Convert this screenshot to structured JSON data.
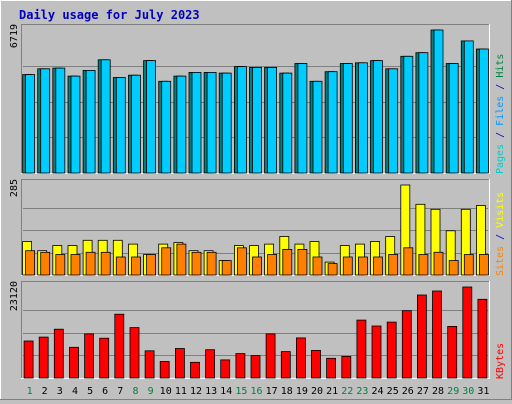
{
  "chart_data": {
    "type": "bar",
    "title": "Daily usage for July 2023",
    "categories": [
      "1",
      "2",
      "3",
      "4",
      "5",
      "6",
      "7",
      "8",
      "9",
      "10",
      "11",
      "12",
      "13",
      "14",
      "15",
      "16",
      "17",
      "18",
      "19",
      "20",
      "21",
      "22",
      "23",
      "24",
      "25",
      "26",
      "27",
      "28",
      "29",
      "30",
      "31"
    ],
    "weekend_days": [
      1,
      8,
      9,
      15,
      16,
      22,
      23,
      29,
      30
    ],
    "panels": [
      {
        "max_label": "6719",
        "ymax": 6719,
        "side_labels": [
          {
            "text": "Pages",
            "color": "#00cccc"
          },
          {
            "text": " / ",
            "color": "#0000c0"
          },
          {
            "text": "Files",
            "color": "#0099ff"
          },
          {
            "text": " / ",
            "color": "#0000c0"
          },
          {
            "text": "Hits",
            "color": "#008040"
          }
        ],
        "series": [
          {
            "name": "Hits",
            "color": "#008080",
            "values": [
              4625,
              4896,
              4930,
              4554,
              4821,
              5321,
              4486,
              4596,
              5280,
              4310,
              4554,
              4726,
              4726,
              4692,
              4998,
              4964,
              4964,
              4692,
              5144,
              4310,
              4760,
              5144,
              5178,
              5279,
              4896,
              5484,
              5654,
              6719,
              5144,
              6209,
              5824
            ]
          },
          {
            "name": "Files",
            "color": "#00ccff",
            "values": [
              4625,
              4896,
              4930,
              4554,
              4821,
              5321,
              4486,
              4596,
              5280,
              4310,
              4554,
              4726,
              4726,
              4692,
              4998,
              4964,
              4964,
              4692,
              5144,
              4310,
              4760,
              5144,
              5178,
              5279,
              4896,
              5484,
              5654,
              6719,
              5144,
              6209,
              5824
            ]
          }
        ]
      },
      {
        "max_label": "285",
        "ymax": 285,
        "side_labels": [
          {
            "text": "Sites",
            "color": "#ff8000"
          },
          {
            "text": " / ",
            "color": "#0000c0"
          },
          {
            "text": "Visits",
            "color": "#ffff00"
          }
        ],
        "series": [
          {
            "name": "Visits",
            "color": "#ffff00",
            "values": [
              106,
              77,
              93,
              93,
              110,
              110,
              110,
              98,
              65,
              98,
              103,
              77,
              77,
              46,
              93,
              93,
              98,
              122,
              98,
              106,
              41,
              93,
              98,
              106,
              122,
              285,
              224,
              208,
              140,
              208,
              220
            ]
          },
          {
            "name": "Sites",
            "color": "#ff8000",
            "values": [
              77,
              72,
              65,
              65,
              72,
              72,
              57,
              57,
              65,
              86,
              98,
              72,
              72,
              46,
              86,
              57,
              65,
              81,
              81,
              57,
              36,
              57,
              57,
              57,
              65,
              86,
              65,
              72,
              46,
              65,
              65
            ]
          }
        ]
      },
      {
        "max_label": "23120",
        "ymax": 23120,
        "side_labels": [
          {
            "text": "KBytes",
            "color": "#ff0000"
          }
        ],
        "series": [
          {
            "name": "KBytes",
            "color": "#ff0000",
            "values": [
              9400,
              10400,
              12400,
              7800,
              11200,
              10100,
              16200,
              12800,
              6900,
              4200,
              7500,
              4000,
              7200,
              4600,
              6200,
              5700,
              11200,
              6700,
              10200,
              7000,
              5000,
              5500,
              14700,
              13200,
              14200,
              17100,
              21100,
              22100,
              13100,
              23120,
              20000
            ]
          }
        ]
      }
    ]
  }
}
